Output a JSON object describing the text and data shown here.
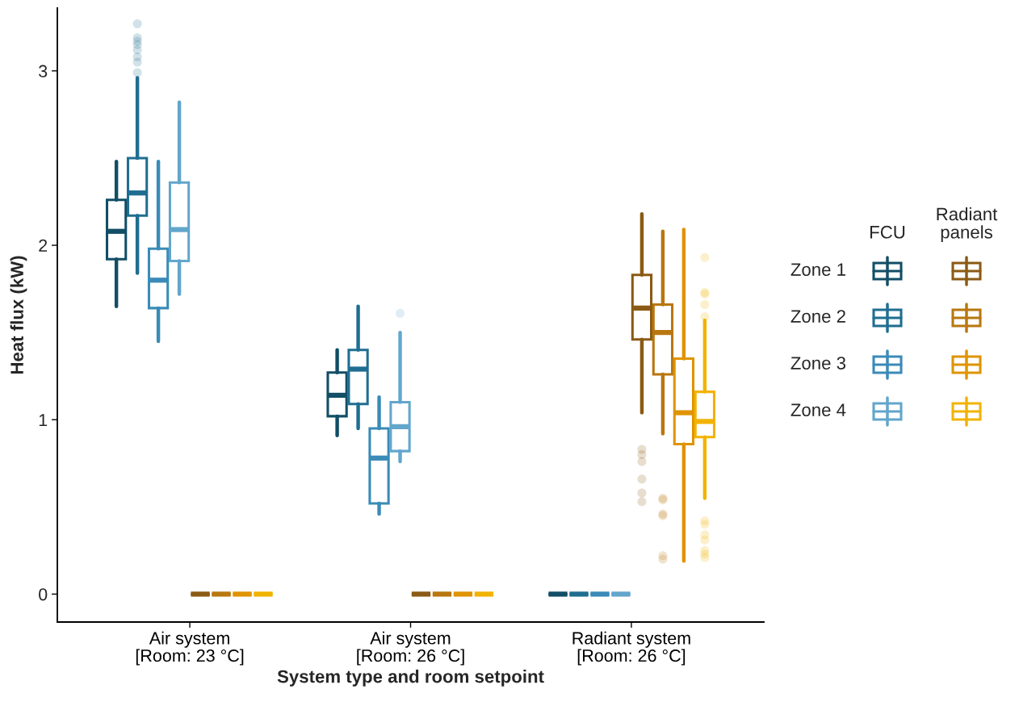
{
  "chart_data": {
    "type": "box",
    "xlabel": "System type and room setpoint",
    "ylabel": "Heat flux (kW)",
    "categories": [
      "Air system\n[Room: 23 °C]",
      "Air system\n[Room: 26 °C]",
      "Radiant system\n[Room: 26 °C]"
    ],
    "ylim": [
      -0.16,
      3.36
    ],
    "yticks": [
      0,
      1,
      2,
      3
    ],
    "grid": false,
    "legend": "right",
    "annotations": [
      "FCU",
      "Radiant\npanels"
    ],
    "series": [
      {
        "name": "Zone 1",
        "color": "#124e66",
        "boxes": [
          {
            "low": 1.65,
            "q1": 1.92,
            "median": 2.08,
            "q3": 2.26,
            "high": 2.48
          },
          {
            "low": 0.91,
            "q1": 1.02,
            "median": 1.14,
            "q3": 1.27,
            "high": 1.4
          },
          {
            "low": 0,
            "q1": 0,
            "median": 0,
            "q3": 0,
            "high": 0
          }
        ]
      },
      {
        "name": "Zone 2",
        "color": "#1f6e91",
        "boxes": [
          {
            "low": 1.84,
            "q1": 2.17,
            "median": 2.3,
            "q3": 2.5,
            "high": 2.96,
            "outliers": [
              3.27,
              3.19,
              3.17,
              3.15,
              3.12,
              3.08,
              3.05,
              2.99
            ]
          },
          {
            "low": 0.95,
            "q1": 1.09,
            "median": 1.29,
            "q3": 1.4,
            "high": 1.65
          },
          {
            "low": 0,
            "q1": 0,
            "median": 0,
            "q3": 0,
            "high": 0
          }
        ]
      },
      {
        "name": "Zone 3",
        "color": "#3a8bb8",
        "boxes": [
          {
            "low": 1.45,
            "q1": 1.64,
            "median": 1.8,
            "q3": 1.98,
            "high": 2.48
          },
          {
            "low": 0.46,
            "q1": 0.52,
            "median": 0.78,
            "q3": 0.95,
            "high": 1.13
          },
          {
            "low": 0,
            "q1": 0,
            "median": 0,
            "q3": 0,
            "high": 0
          }
        ]
      },
      {
        "name": "Zone 4",
        "color": "#62a6cc",
        "boxes": [
          {
            "low": 1.72,
            "q1": 1.91,
            "median": 2.09,
            "q3": 2.36,
            "high": 2.82
          },
          {
            "low": 0.76,
            "q1": 0.82,
            "median": 0.96,
            "q3": 1.1,
            "high": 1.5,
            "outliers": [
              1.61
            ]
          },
          {
            "low": 0,
            "q1": 0,
            "median": 0,
            "q3": 0,
            "high": 0
          }
        ]
      },
      {
        "color": "#8b5a14",
        "boxes": [
          {
            "low": 0,
            "q1": 0,
            "median": 0,
            "q3": 0,
            "high": 0
          },
          {
            "low": 0,
            "q1": 0,
            "median": 0,
            "q3": 0,
            "high": 0
          },
          {
            "low": 1.04,
            "q1": 1.46,
            "median": 1.64,
            "q3": 1.83,
            "high": 2.18,
            "outliers": [
              0.83,
              0.8,
              0.76,
              0.66,
              0.58,
              0.53
            ]
          }
        ]
      },
      {
        "color": "#b8770f",
        "boxes": [
          {
            "low": 0,
            "q1": 0,
            "median": 0,
            "q3": 0,
            "high": 0
          },
          {
            "low": 0,
            "q1": 0,
            "median": 0,
            "q3": 0,
            "high": 0
          },
          {
            "low": 0.92,
            "q1": 1.26,
            "median": 1.5,
            "q3": 1.66,
            "high": 2.08,
            "outliers": [
              0.55,
              0.54,
              0.46,
              0.45,
              0.22,
              0.2
            ]
          }
        ]
      },
      {
        "color": "#df9400",
        "boxes": [
          {
            "low": 0,
            "q1": 0,
            "median": 0,
            "q3": 0,
            "high": 0
          },
          {
            "low": 0,
            "q1": 0,
            "median": 0,
            "q3": 0,
            "high": 0
          },
          {
            "low": 0.19,
            "q1": 0.86,
            "median": 1.04,
            "q3": 1.35,
            "high": 2.09
          }
        ]
      },
      {
        "color": "#f2b300",
        "boxes": [
          {
            "low": 0,
            "q1": 0,
            "median": 0,
            "q3": 0,
            "high": 0
          },
          {
            "low": 0,
            "q1": 0,
            "median": 0,
            "q3": 0,
            "high": 0
          },
          {
            "low": 0.55,
            "q1": 0.9,
            "median": 0.99,
            "q3": 1.16,
            "high": 1.57,
            "outliers": [
              1.93,
              1.73,
              1.72,
              1.66,
              1.59,
              0.42,
              0.4,
              0.34,
              0.31,
              0.25,
              0.23,
              0.21
            ]
          }
        ]
      }
    ]
  }
}
